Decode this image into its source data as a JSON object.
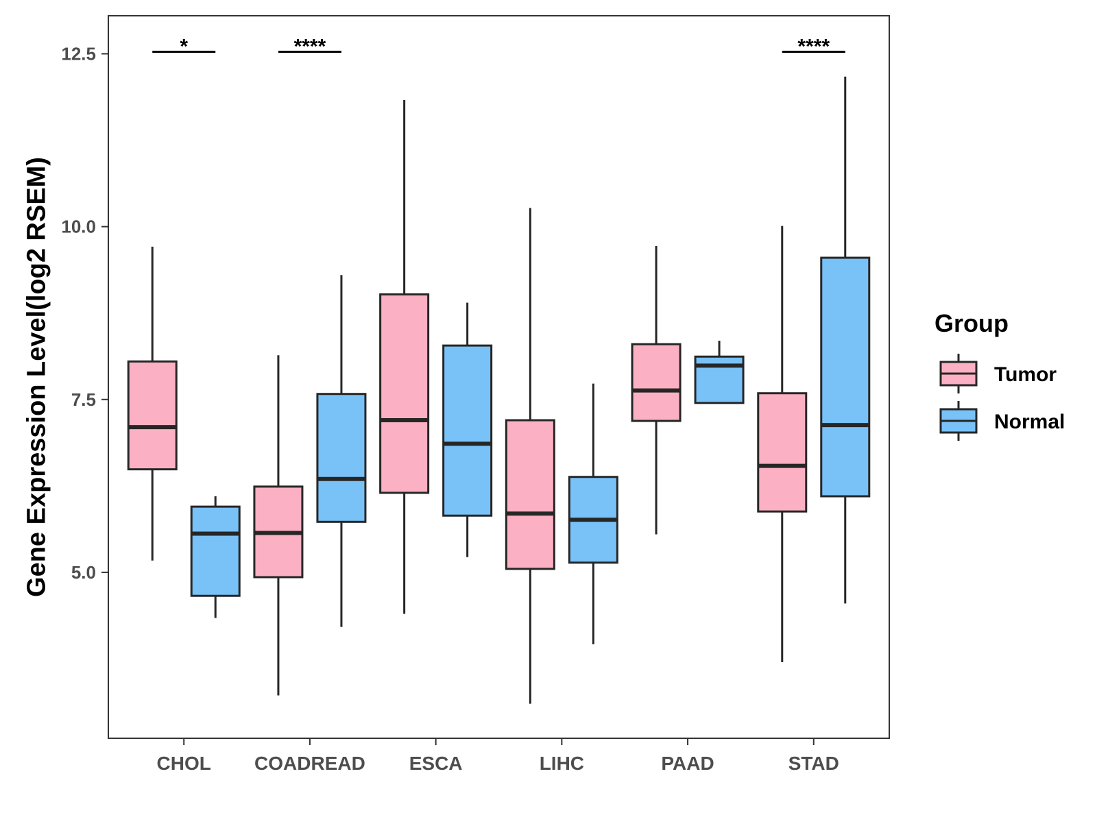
{
  "chart_data": {
    "type": "boxplot",
    "title": "",
    "xlabel": "",
    "ylabel": "Gene Expression Level(log2 RSEM)",
    "ylim": [
      2.6,
      13.05
    ],
    "yticks": [
      5.0,
      7.5,
      10.0,
      12.5
    ],
    "ytick_labels": [
      "5.0",
      "7.5",
      "10.0",
      "12.5"
    ],
    "grid": false,
    "categories": [
      "CHOL",
      "COADREAD",
      "ESCA",
      "LIHC",
      "PAAD",
      "STAD"
    ],
    "legend": {
      "title": "Group",
      "position": "right",
      "items": [
        {
          "label": "Tumor",
          "color": "#FBB1C3"
        },
        {
          "label": "Normal",
          "color": "#79C2F8"
        }
      ]
    },
    "series": [
      {
        "name": "Tumor",
        "color": "#FBB1C3",
        "boxes": [
          {
            "whisker_low": 5.17,
            "q1": 6.49,
            "median": 7.1,
            "q3": 8.05,
            "whisker_high": 9.71
          },
          {
            "whisker_low": 3.22,
            "q1": 4.93,
            "median": 5.57,
            "q3": 6.24,
            "whisker_high": 8.14
          },
          {
            "whisker_low": 4.4,
            "q1": 6.15,
            "median": 7.2,
            "q3": 9.02,
            "whisker_high": 11.83
          },
          {
            "whisker_low": 3.1,
            "q1": 5.05,
            "median": 5.85,
            "q3": 7.2,
            "whisker_high": 10.27
          },
          {
            "whisker_low": 5.55,
            "q1": 7.19,
            "median": 7.63,
            "q3": 8.3,
            "whisker_high": 9.72
          },
          {
            "whisker_low": 3.7,
            "q1": 5.88,
            "median": 6.54,
            "q3": 7.59,
            "whisker_high": 10.01
          }
        ]
      },
      {
        "name": "Normal",
        "color": "#79C2F8",
        "boxes": [
          {
            "whisker_low": 4.34,
            "q1": 4.66,
            "median": 5.56,
            "q3": 5.95,
            "whisker_high": 6.1
          },
          {
            "whisker_low": 4.21,
            "q1": 5.73,
            "median": 6.35,
            "q3": 7.58,
            "whisker_high": 9.3
          },
          {
            "whisker_low": 5.22,
            "q1": 5.82,
            "median": 6.86,
            "q3": 8.28,
            "whisker_high": 8.9
          },
          {
            "whisker_low": 3.96,
            "q1": 5.14,
            "median": 5.76,
            "q3": 6.38,
            "whisker_high": 7.73
          },
          {
            "whisker_low": 7.45,
            "q1": 7.45,
            "median": 7.99,
            "q3": 8.12,
            "whisker_high": 8.35
          },
          {
            "whisker_low": 4.55,
            "q1": 6.1,
            "median": 7.13,
            "q3": 9.55,
            "whisker_high": 12.17
          }
        ]
      }
    ],
    "significance": [
      {
        "category": "CHOL",
        "label": "*",
        "y": 12.53
      },
      {
        "category": "COADREAD",
        "label": "****",
        "y": 12.53
      },
      {
        "category": "STAD",
        "label": "****",
        "y": 12.53
      }
    ]
  }
}
